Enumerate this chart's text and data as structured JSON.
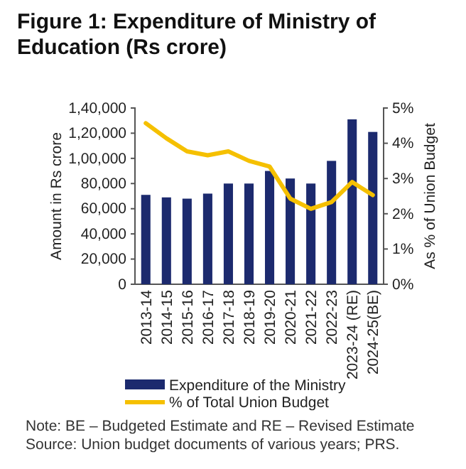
{
  "chart_data": {
    "type": "bar",
    "title": "Figure 1: Expenditure of Ministry of Education (Rs crore)",
    "categories": [
      "2013-14",
      "2014-15",
      "2015-16",
      "2016-17",
      "2017-18",
      "2018-19",
      "2019-20",
      "2020-21",
      "2021-22",
      "2022-23",
      "2023-24 (RE)",
      "2024-25(BE)"
    ],
    "series": [
      {
        "name": "Expenditure of the Ministry",
        "color": "#1c2a6e",
        "values": [
          71000,
          69000,
          68000,
          72000,
          80000,
          80000,
          90000,
          84000,
          80000,
          98000,
          131000,
          121000
        ]
      },
      {
        "name": "% of Total Union Budget",
        "type": "line",
        "axis": "y2",
        "color": "#f5c000",
        "values": [
          4.57,
          4.14,
          3.77,
          3.66,
          3.77,
          3.5,
          3.34,
          2.43,
          2.14,
          2.33,
          2.9,
          2.53
        ]
      }
    ],
    "ylabel": "Amount in Rs crore",
    "y2label": "As % of Union Budget",
    "ylim": [
      0,
      140000
    ],
    "yticks": [
      {
        "value": 0,
        "label": "0"
      },
      {
        "value": 20000,
        "label": "20,000"
      },
      {
        "value": 40000,
        "label": "40,000"
      },
      {
        "value": 60000,
        "label": "60,000"
      },
      {
        "value": 80000,
        "label": "80,000"
      },
      {
        "value": 100000,
        "label": "1,00,000"
      },
      {
        "value": 120000,
        "label": "1,20,000"
      },
      {
        "value": 140000,
        "label": "1,40,000"
      }
    ],
    "y2lim": [
      0,
      5
    ],
    "y2ticks": [
      {
        "value": 0,
        "label": "0%"
      },
      {
        "value": 1,
        "label": "1%"
      },
      {
        "value": 2,
        "label": "2%"
      },
      {
        "value": 3,
        "label": "3%"
      },
      {
        "value": 4,
        "label": "4%"
      },
      {
        "value": 5,
        "label": "5%"
      }
    ],
    "legend": "bottom",
    "grid": false,
    "annotations": [
      "Note: BE – Budgeted Estimate and RE – Revised Estimate",
      "Source: Union budget documents of various years; PRS."
    ]
  }
}
